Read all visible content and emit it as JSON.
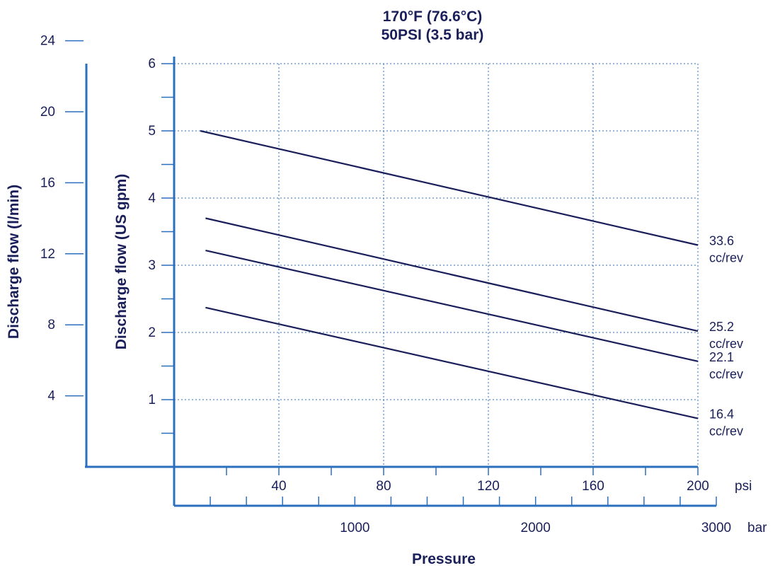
{
  "chart_data": {
    "type": "line",
    "title": "170°F (76.6°C)",
    "subtitle": "50PSI (3.5 bar)",
    "xlabel": "Pressure",
    "ylabel_primary": "Discharge flow (US gpm)",
    "ylabel_secondary": "Discharge flow (l/min)",
    "x_unit_primary": "psi",
    "x_unit_secondary": "bar",
    "xlim": [
      0,
      200
    ],
    "ylim": [
      0,
      6
    ],
    "x_ticks_psi": [
      40,
      80,
      120,
      160,
      200
    ],
    "x_ticks_bar": [
      1000,
      2000,
      3000
    ],
    "y_ticks_gpm": [
      1,
      2,
      3,
      4,
      5,
      6
    ],
    "y_ticks_lmin": [
      4,
      8,
      12,
      16,
      20,
      24
    ],
    "grid": true,
    "series": [
      {
        "name": "33.6",
        "unit": "cc/rev",
        "x": [
          10,
          200
        ],
        "y": [
          5.0,
          3.3
        ]
      },
      {
        "name": "25.2",
        "unit": "cc/rev",
        "x": [
          12,
          200
        ],
        "y": [
          3.7,
          2.02
        ]
      },
      {
        "name": "22.1",
        "unit": "cc/rev",
        "x": [
          12,
          200
        ],
        "y": [
          3.22,
          1.57
        ]
      },
      {
        "name": "16.4",
        "unit": "cc/rev",
        "x": [
          12,
          200
        ],
        "y": [
          2.37,
          0.72
        ]
      }
    ],
    "colors": {
      "line": "#1a1f5a",
      "grid": "#2b6fbf",
      "text": "#1a1f5a"
    }
  }
}
